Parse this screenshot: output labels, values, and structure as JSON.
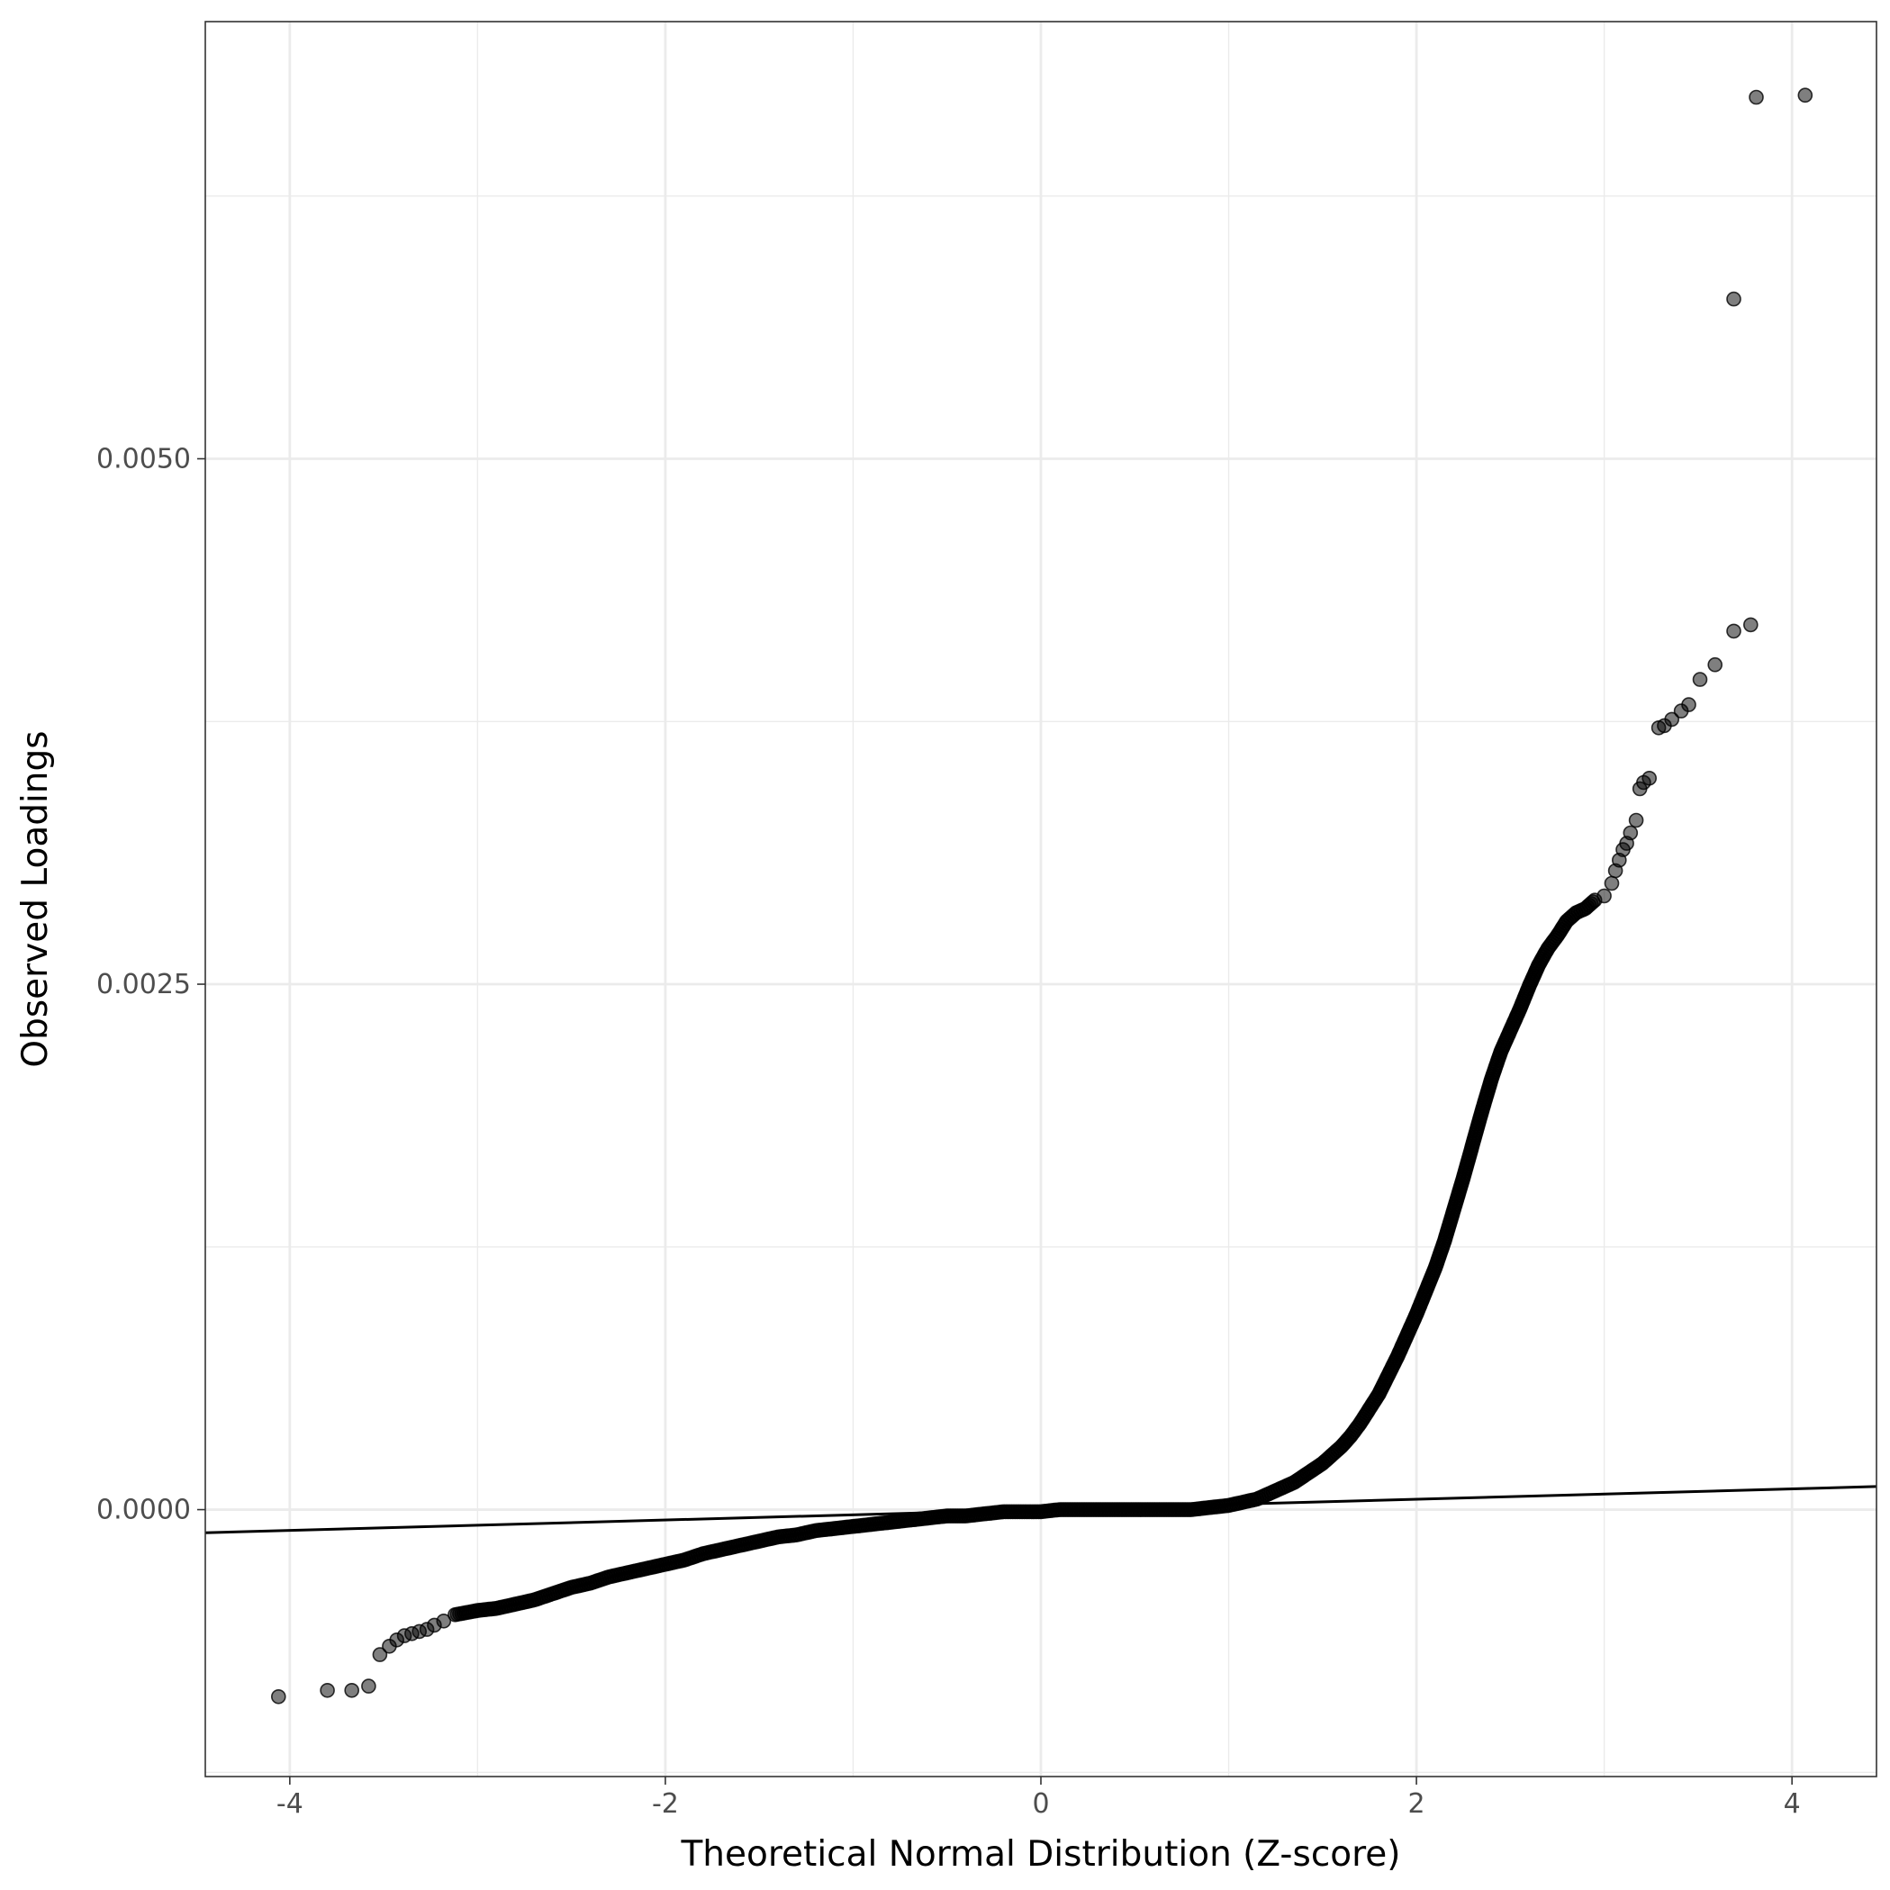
{
  "chart_data": {
    "type": "scatter",
    "subtype": "qq-plot",
    "title": "",
    "xlabel": "Theoretical Normal Distribution (Z-score)",
    "ylabel": "Observed Loadings",
    "xlim": [
      -4.45,
      4.45
    ],
    "ylim": [
      -0.00127,
      0.00708
    ],
    "x_ticks": [
      -4,
      -2,
      0,
      2,
      4
    ],
    "x_tick_labels": [
      "-4",
      "-2",
      "0",
      "2",
      "4"
    ],
    "y_ticks": [
      0.0,
      0.0025,
      0.005
    ],
    "y_tick_labels": [
      "0.0000",
      "0.0025",
      "0.0050"
    ],
    "grid": true,
    "legend": "none",
    "reference_line": {
      "slope": 2.47e-05,
      "intercept": 0.0
    },
    "point_color": "#000000",
    "point_opacity": 0.5,
    "series": [
      {
        "points": [
          [
            -4.06,
            -0.00089
          ],
          [
            -3.8,
            -0.00086
          ],
          [
            -3.67,
            -0.00086
          ],
          [
            -3.58,
            -0.00084
          ],
          [
            -3.52,
            -0.00069
          ],
          [
            -3.47,
            -0.00065
          ],
          [
            -3.43,
            -0.00062
          ],
          [
            -3.39,
            -0.0006
          ],
          [
            -3.35,
            -0.00059
          ],
          [
            -3.31,
            -0.00058
          ],
          [
            -3.27,
            -0.00057
          ],
          [
            -3.23,
            -0.00055
          ],
          [
            -3.18,
            -0.00053
          ],
          [
            -3.12,
            -0.0005
          ],
          [
            -3.0,
            -0.00048
          ],
          [
            -2.9,
            -0.00047
          ],
          [
            -2.8,
            -0.00045
          ],
          [
            -2.7,
            -0.00043
          ],
          [
            -2.6,
            -0.0004
          ],
          [
            -2.5,
            -0.00037
          ],
          [
            -2.4,
            -0.00035
          ],
          [
            -2.3,
            -0.00032
          ],
          [
            -2.2,
            -0.0003
          ],
          [
            -2.1,
            -0.00028
          ],
          [
            -2.0,
            -0.00026
          ],
          [
            -1.9,
            -0.00024
          ],
          [
            -1.8,
            -0.00021
          ],
          [
            -1.7,
            -0.00019
          ],
          [
            -1.6,
            -0.00017
          ],
          [
            -1.5,
            -0.00015
          ],
          [
            -1.4,
            -0.00013
          ],
          [
            -1.3,
            -0.00012
          ],
          [
            -1.2,
            -0.0001
          ],
          [
            -1.1,
            -9e-05
          ],
          [
            -1.0,
            -8e-05
          ],
          [
            -0.9,
            -7e-05
          ],
          [
            -0.8,
            -6e-05
          ],
          [
            -0.7,
            -5e-05
          ],
          [
            -0.6,
            -4e-05
          ],
          [
            -0.5,
            -3e-05
          ],
          [
            -0.4,
            -3e-05
          ],
          [
            -0.3,
            -2e-05
          ],
          [
            -0.2,
            -1e-05
          ],
          [
            -0.1,
            -1e-05
          ],
          [
            0.0,
            -1e-05
          ],
          [
            0.1,
            0.0
          ],
          [
            0.2,
            0.0
          ],
          [
            0.3,
            0.0
          ],
          [
            0.4,
            0.0
          ],
          [
            0.5,
            0.0
          ],
          [
            0.6,
            0.0
          ],
          [
            0.7,
            0.0
          ],
          [
            0.8,
            0.0
          ],
          [
            0.9,
            1e-05
          ],
          [
            1.0,
            2e-05
          ],
          [
            1.05,
            3e-05
          ],
          [
            1.1,
            4e-05
          ],
          [
            1.15,
            5e-05
          ],
          [
            1.2,
            7e-05
          ],
          [
            1.25,
            9e-05
          ],
          [
            1.3,
            0.00011
          ],
          [
            1.35,
            0.00013
          ],
          [
            1.4,
            0.00016
          ],
          [
            1.45,
            0.00019
          ],
          [
            1.5,
            0.00022
          ],
          [
            1.55,
            0.00026
          ],
          [
            1.6,
            0.0003
          ],
          [
            1.65,
            0.00035
          ],
          [
            1.7,
            0.00041
          ],
          [
            1.75,
            0.00048
          ],
          [
            1.8,
            0.00055
          ],
          [
            1.85,
            0.00064
          ],
          [
            1.9,
            0.00073
          ],
          [
            1.95,
            0.00083
          ],
          [
            2.0,
            0.00093
          ],
          [
            2.05,
            0.00104
          ],
          [
            2.1,
            0.00115
          ],
          [
            2.15,
            0.00128
          ],
          [
            2.2,
            0.00143
          ],
          [
            2.25,
            0.00158
          ],
          [
            2.3,
            0.00174
          ],
          [
            2.35,
            0.0019
          ],
          [
            2.4,
            0.00205
          ],
          [
            2.45,
            0.00218
          ],
          [
            2.5,
            0.00228
          ],
          [
            2.55,
            0.00238
          ],
          [
            2.6,
            0.00249
          ],
          [
            2.65,
            0.00259
          ],
          [
            2.7,
            0.00267
          ],
          [
            2.75,
            0.00273
          ],
          [
            2.8,
            0.0028
          ],
          [
            2.85,
            0.00284
          ],
          [
            2.9,
            0.00286
          ],
          [
            2.95,
            0.0029
          ],
          [
            3.0,
            0.00292
          ],
          [
            3.04,
            0.00298
          ],
          [
            3.06,
            0.00304
          ],
          [
            3.08,
            0.00309
          ],
          [
            3.1,
            0.00314
          ],
          [
            3.12,
            0.00317
          ],
          [
            3.14,
            0.00322
          ],
          [
            3.17,
            0.00328
          ],
          [
            3.19,
            0.00343
          ],
          [
            3.21,
            0.00346
          ],
          [
            3.24,
            0.00348
          ],
          [
            3.29,
            0.00372
          ],
          [
            3.32,
            0.00373
          ],
          [
            3.36,
            0.00376
          ],
          [
            3.41,
            0.0038
          ],
          [
            3.45,
            0.00383
          ],
          [
            3.51,
            0.00395
          ],
          [
            3.59,
            0.00402
          ],
          [
            3.69,
            0.00418
          ],
          [
            3.78,
            0.00421
          ],
          [
            3.69,
            0.00576
          ],
          [
            3.81,
            0.00672
          ],
          [
            4.07,
            0.00673
          ]
        ]
      }
    ]
  }
}
